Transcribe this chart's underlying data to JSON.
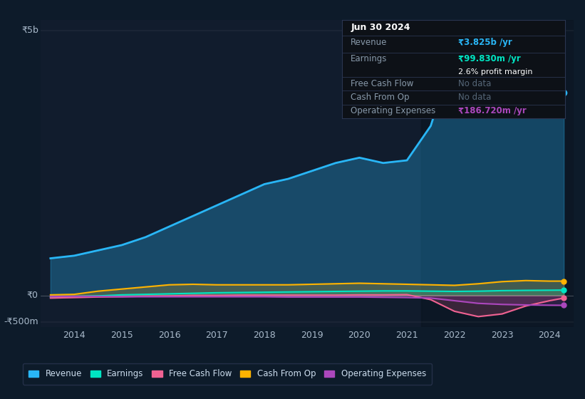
{
  "background_color": "#0d1b2a",
  "panel_bg_color": "#111c2d",
  "years": [
    2013.5,
    2014.0,
    2014.5,
    2015.0,
    2015.5,
    2016.0,
    2016.5,
    2017.0,
    2017.5,
    2018.0,
    2018.5,
    2019.0,
    2019.5,
    2020.0,
    2020.5,
    2021.0,
    2021.5,
    2022.0,
    2022.5,
    2023.0,
    2023.5,
    2024.0,
    2024.3
  ],
  "revenue_m": [
    700,
    750,
    850,
    950,
    1100,
    1300,
    1500,
    1700,
    1900,
    2100,
    2200,
    2350,
    2500,
    2600,
    2500,
    2550,
    3200,
    4600,
    4800,
    3800,
    3500,
    3700,
    3825
  ],
  "earnings_m": [
    -30,
    -20,
    -10,
    10,
    20,
    30,
    40,
    50,
    55,
    60,
    65,
    70,
    75,
    80,
    85,
    85,
    80,
    75,
    80,
    90,
    95,
    98,
    100
  ],
  "fcf_m": [
    -50,
    -40,
    -30,
    -25,
    -15,
    -10,
    0,
    0,
    5,
    5,
    5,
    5,
    5,
    10,
    10,
    15,
    -80,
    -300,
    -400,
    -350,
    -200,
    -100,
    -50
  ],
  "cashop_m": [
    10,
    20,
    80,
    120,
    160,
    200,
    210,
    200,
    200,
    200,
    200,
    210,
    220,
    230,
    220,
    210,
    200,
    190,
    220,
    260,
    280,
    270,
    270
  ],
  "opex_m": [
    -20,
    -20,
    -20,
    -25,
    -25,
    -25,
    -25,
    -25,
    -25,
    -25,
    -30,
    -30,
    -30,
    -30,
    -35,
    -40,
    -50,
    -100,
    -150,
    -170,
    -180,
    -185,
    -187
  ],
  "xlim": [
    2013.3,
    2024.5
  ],
  "ylim_bottom": -600,
  "ylim_top": 5200,
  "y_label_5b": "₹5b",
  "y_label_0": "₹0",
  "y_neg_label": "-₹500m",
  "x_ticks": [
    2014,
    2015,
    2016,
    2017,
    2018,
    2019,
    2020,
    2021,
    2022,
    2023,
    2024
  ],
  "revenue_color": "#29b6f6",
  "earnings_color": "#00e5c3",
  "fcf_color": "#f06292",
  "cashop_color": "#ffb300",
  "opex_color": "#ab47bc",
  "shade_start": 2021.3,
  "info_box": {
    "date": "Jun 30 2024",
    "revenue_label": "Revenue",
    "revenue_value": "₹3.825b /yr",
    "earnings_label": "Earnings",
    "earnings_value": "₹99.830m /yr",
    "profit_margin": "2.6% profit margin",
    "fcf_label": "Free Cash Flow",
    "fcf_value": "No data",
    "cashop_label": "Cash From Op",
    "cashop_value": "No data",
    "opex_label": "Operating Expenses",
    "opex_value": "₹186.720m /yr",
    "box_bg": "#0d1117",
    "box_border": "#2a3550",
    "value_color_revenue": "#29b6f6",
    "value_color_earnings": "#00e5c3",
    "value_color_opex": "#ab47bc",
    "label_color": "#8899aa",
    "nodata_color": "#556677"
  },
  "legend_items": [
    {
      "label": "Revenue",
      "color": "#29b6f6"
    },
    {
      "label": "Earnings",
      "color": "#00e5c3"
    },
    {
      "label": "Free Cash Flow",
      "color": "#f06292"
    },
    {
      "label": "Cash From Op",
      "color": "#ffb300"
    },
    {
      "label": "Operating Expenses",
      "color": "#ab47bc"
    }
  ]
}
